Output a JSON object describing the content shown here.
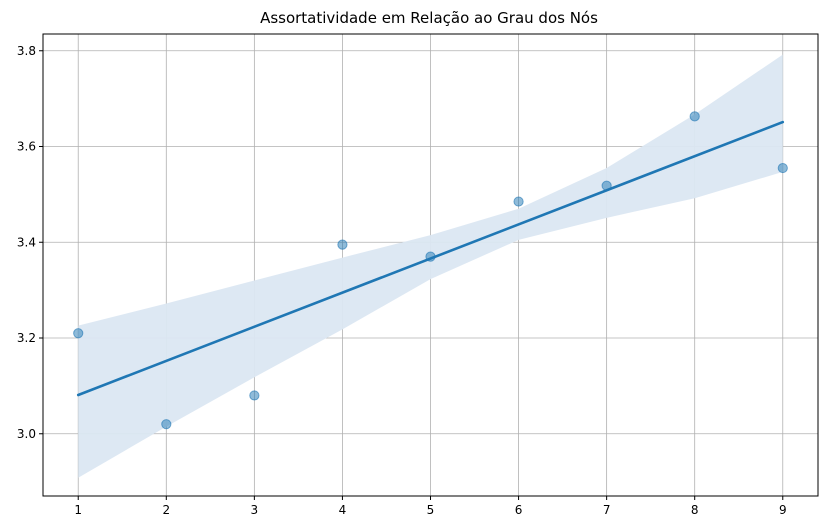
{
  "chart_data": {
    "type": "scatter",
    "title": "Assortatividade em Relação ao Grau dos Nós",
    "xlabel": "",
    "ylabel": "",
    "xlim": [
      0.6,
      9.4
    ],
    "ylim": [
      2.87,
      3.835
    ],
    "x_ticks": [
      1,
      2,
      3,
      4,
      5,
      6,
      7,
      8,
      9
    ],
    "y_ticks": [
      3.0,
      3.2,
      3.4,
      3.6,
      3.8
    ],
    "y_tick_labels": [
      "3.0",
      "3.2",
      "3.4",
      "3.6",
      "3.8"
    ],
    "grid": true,
    "legend": "none",
    "points": [
      {
        "x": 1,
        "y": 3.21
      },
      {
        "x": 2,
        "y": 3.02
      },
      {
        "x": 3,
        "y": 3.08
      },
      {
        "x": 4,
        "y": 3.395
      },
      {
        "x": 5,
        "y": 3.37
      },
      {
        "x": 6,
        "y": 3.485
      },
      {
        "x": 7,
        "y": 3.518
      },
      {
        "x": 8,
        "y": 3.663
      },
      {
        "x": 9,
        "y": 3.555
      }
    ],
    "regression_line": {
      "x": [
        1,
        9
      ],
      "y": [
        3.081,
        3.651
      ]
    },
    "confidence_band": {
      "x": [
        1,
        2,
        3,
        4,
        5,
        6,
        7,
        8,
        9
      ],
      "upper": [
        3.226,
        3.272,
        3.32,
        3.368,
        3.415,
        3.47,
        3.555,
        3.667,
        3.792
      ],
      "lower": [
        2.908,
        3.015,
        3.118,
        3.218,
        3.323,
        3.405,
        3.451,
        3.492,
        3.547
      ]
    },
    "colors": {
      "points": "#1f77b4",
      "line": "#1f77b4",
      "band": "#dbe7f2",
      "grid": "#b0b0b0",
      "axis": "#000000"
    }
  }
}
